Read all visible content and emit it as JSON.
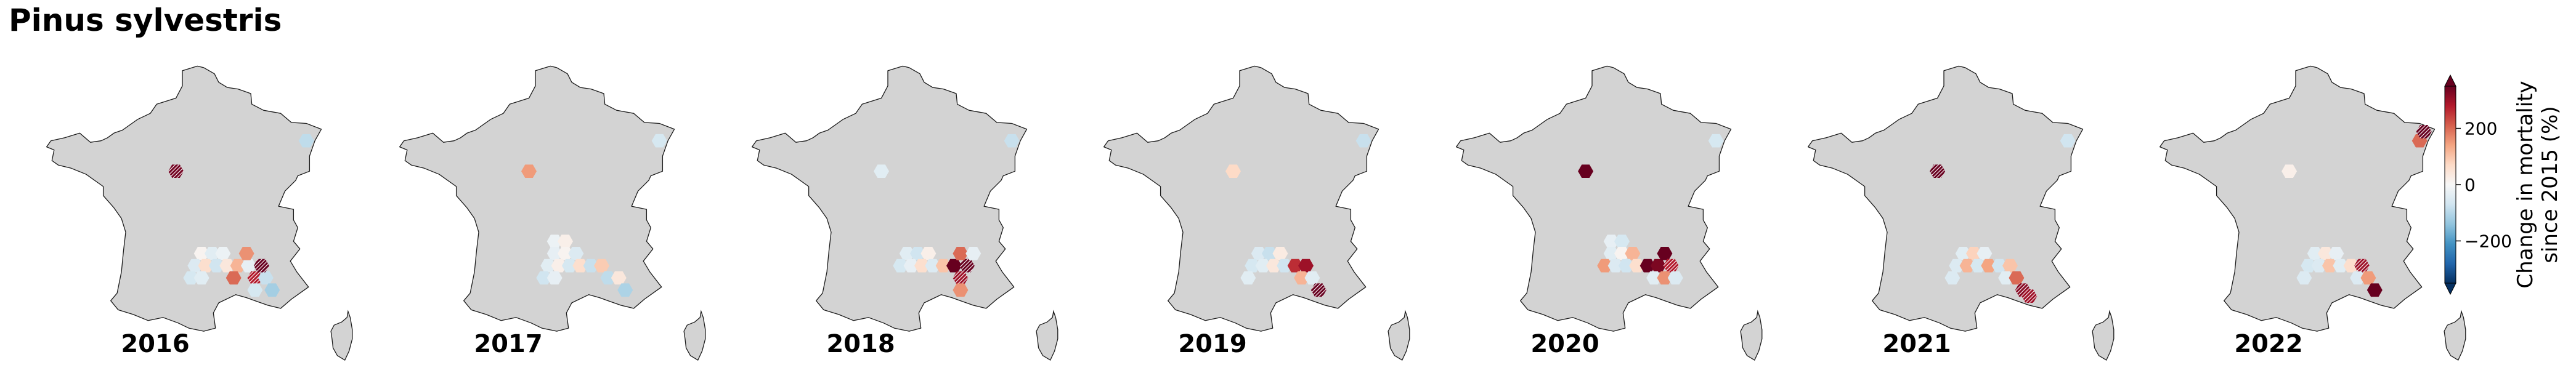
{
  "title": "Pinus sylvestris",
  "colors": {
    "land": "#d3d3d3",
    "coast": "#1a1a1a",
    "cmap": [
      "#053061",
      "#2166ac",
      "#4393c3",
      "#92c5de",
      "#d1e5f0",
      "#f7f7f7",
      "#fddbc7",
      "#f4a582",
      "#d6604d",
      "#b2182b",
      "#67001f"
    ],
    "hatch_edge": "#ffffff"
  },
  "chart_data": {
    "type": "heatmap",
    "description_type": "hexbin small multiples map",
    "colorbar": {
      "label_line1": "Change in mortality",
      "label_line2": "since 2015 (%)",
      "ticks": [
        {
          "value": 200,
          "label": "200"
        },
        {
          "value": 0,
          "label": "0"
        },
        {
          "value": -200,
          "label": "−200"
        }
      ],
      "range": [
        -350,
        350
      ],
      "extend": "both"
    },
    "panels": [
      {
        "year": "2016",
        "hexes": [
          {
            "lon": 1.3,
            "lat": 47.6,
            "value": 340,
            "hatched": true
          },
          {
            "lon": 7.4,
            "lat": 48.6,
            "value": -90,
            "hatched": false
          },
          {
            "lon": 2.5,
            "lat": 44.9,
            "value": 10,
            "hatched": false
          },
          {
            "lon": 3.0,
            "lat": 44.9,
            "value": -40,
            "hatched": false
          },
          {
            "lon": 3.5,
            "lat": 44.9,
            "value": -20,
            "hatched": false
          },
          {
            "lon": 2.2,
            "lat": 44.5,
            "value": -50,
            "hatched": false
          },
          {
            "lon": 2.7,
            "lat": 44.5,
            "value": 60,
            "hatched": false
          },
          {
            "lon": 3.2,
            "lat": 44.5,
            "value": -70,
            "hatched": false
          },
          {
            "lon": 3.7,
            "lat": 44.5,
            "value": 40,
            "hatched": false
          },
          {
            "lon": 4.2,
            "lat": 44.5,
            "value": 120,
            "hatched": false
          },
          {
            "lon": 4.7,
            "lat": 44.5,
            "value": -30,
            "hatched": false
          },
          {
            "lon": 2.0,
            "lat": 44.1,
            "value": -60,
            "hatched": false
          },
          {
            "lon": 2.5,
            "lat": 44.1,
            "value": -40,
            "hatched": false
          },
          {
            "lon": 4.0,
            "lat": 44.1,
            "value": 200,
            "hatched": false
          },
          {
            "lon": 5.0,
            "lat": 44.1,
            "value": 280,
            "hatched": true
          },
          {
            "lon": 5.5,
            "lat": 44.1,
            "value": -80,
            "hatched": false
          },
          {
            "lon": 5.3,
            "lat": 44.5,
            "value": 350,
            "hatched": true
          },
          {
            "lon": 5.0,
            "lat": 43.7,
            "value": -60,
            "hatched": false
          },
          {
            "lon": 5.8,
            "lat": 43.7,
            "value": -120,
            "hatched": false
          },
          {
            "lon": 4.6,
            "lat": 44.9,
            "value": 160,
            "hatched": false
          }
        ]
      },
      {
        "year": "2017",
        "hexes": [
          {
            "lon": 1.3,
            "lat": 47.6,
            "value": 150,
            "hatched": false
          },
          {
            "lon": 7.4,
            "lat": 48.6,
            "value": -60,
            "hatched": false
          },
          {
            "lon": 2.5,
            "lat": 45.3,
            "value": -20,
            "hatched": false
          },
          {
            "lon": 3.0,
            "lat": 45.3,
            "value": 20,
            "hatched": false
          },
          {
            "lon": 2.5,
            "lat": 44.9,
            "value": -30,
            "hatched": false
          },
          {
            "lon": 3.0,
            "lat": 44.9,
            "value": 10,
            "hatched": false
          },
          {
            "lon": 3.5,
            "lat": 44.9,
            "value": -50,
            "hatched": false
          },
          {
            "lon": 2.2,
            "lat": 44.5,
            "value": -40,
            "hatched": false
          },
          {
            "lon": 2.7,
            "lat": 44.5,
            "value": 20,
            "hatched": false
          },
          {
            "lon": 3.2,
            "lat": 44.5,
            "value": -60,
            "hatched": false
          },
          {
            "lon": 3.7,
            "lat": 44.5,
            "value": 60,
            "hatched": false
          },
          {
            "lon": 4.2,
            "lat": 44.5,
            "value": -80,
            "hatched": false
          },
          {
            "lon": 4.7,
            "lat": 44.5,
            "value": 90,
            "hatched": false
          },
          {
            "lon": 2.0,
            "lat": 44.1,
            "value": -70,
            "hatched": false
          },
          {
            "lon": 2.5,
            "lat": 44.1,
            "value": -30,
            "hatched": false
          },
          {
            "lon": 5.0,
            "lat": 44.1,
            "value": -90,
            "hatched": false
          },
          {
            "lon": 5.5,
            "lat": 44.1,
            "value": 40,
            "hatched": false
          },
          {
            "lon": 5.8,
            "lat": 43.7,
            "value": -110,
            "hatched": false
          }
        ]
      },
      {
        "year": "2018",
        "hexes": [
          {
            "lon": 1.3,
            "lat": 47.6,
            "value": -40,
            "hatched": false
          },
          {
            "lon": 7.4,
            "lat": 48.6,
            "value": -80,
            "hatched": false
          },
          {
            "lon": 2.5,
            "lat": 44.9,
            "value": -40,
            "hatched": false
          },
          {
            "lon": 3.0,
            "lat": 44.9,
            "value": -70,
            "hatched": false
          },
          {
            "lon": 3.5,
            "lat": 44.9,
            "value": 20,
            "hatched": false
          },
          {
            "lon": 2.2,
            "lat": 44.5,
            "value": -60,
            "hatched": false
          },
          {
            "lon": 2.7,
            "lat": 44.5,
            "value": -30,
            "hatched": false
          },
          {
            "lon": 3.2,
            "lat": 44.5,
            "value": 60,
            "hatched": false
          },
          {
            "lon": 3.7,
            "lat": 44.5,
            "value": -50,
            "hatched": false
          },
          {
            "lon": 4.2,
            "lat": 44.5,
            "value": 100,
            "hatched": false
          },
          {
            "lon": 4.7,
            "lat": 44.5,
            "value": 350,
            "hatched": false
          },
          {
            "lon": 5.3,
            "lat": 44.5,
            "value": 350,
            "hatched": true
          },
          {
            "lon": 5.0,
            "lat": 44.9,
            "value": 200,
            "hatched": false
          },
          {
            "lon": 5.0,
            "lat": 44.1,
            "value": 300,
            "hatched": true
          },
          {
            "lon": 5.0,
            "lat": 43.7,
            "value": 160,
            "hatched": false
          },
          {
            "lon": 5.6,
            "lat": 44.9,
            "value": -30,
            "hatched": false
          }
        ]
      },
      {
        "year": "2019",
        "hexes": [
          {
            "lon": 1.3,
            "lat": 47.6,
            "value": 70,
            "hatched": false
          },
          {
            "lon": 7.4,
            "lat": 48.6,
            "value": -80,
            "hatched": false
          },
          {
            "lon": 2.5,
            "lat": 44.9,
            "value": -50,
            "hatched": false
          },
          {
            "lon": 3.0,
            "lat": 44.9,
            "value": -80,
            "hatched": false
          },
          {
            "lon": 3.5,
            "lat": 44.9,
            "value": 30,
            "hatched": false
          },
          {
            "lon": 2.2,
            "lat": 44.5,
            "value": -60,
            "hatched": false
          },
          {
            "lon": 2.7,
            "lat": 44.5,
            "value": -40,
            "hatched": false
          },
          {
            "lon": 3.2,
            "lat": 44.5,
            "value": 40,
            "hatched": false
          },
          {
            "lon": 3.7,
            "lat": 44.5,
            "value": -70,
            "hatched": false
          },
          {
            "lon": 4.2,
            "lat": 44.5,
            "value": 260,
            "hatched": false
          },
          {
            "lon": 4.7,
            "lat": 44.5,
            "value": 300,
            "hatched": false
          },
          {
            "lon": 4.5,
            "lat": 44.1,
            "value": 120,
            "hatched": false
          },
          {
            "lon": 5.0,
            "lat": 44.1,
            "value": -40,
            "hatched": false
          },
          {
            "lon": 5.3,
            "lat": 43.7,
            "value": 350,
            "hatched": true
          },
          {
            "lon": 2.0,
            "lat": 44.1,
            "value": -40,
            "hatched": false
          }
        ]
      },
      {
        "year": "2020",
        "hexes": [
          {
            "lon": 1.3,
            "lat": 47.6,
            "value": 350,
            "hatched": false
          },
          {
            "lon": 7.4,
            "lat": 48.6,
            "value": -60,
            "hatched": false
          },
          {
            "lon": 2.5,
            "lat": 45.3,
            "value": -30,
            "hatched": false
          },
          {
            "lon": 3.0,
            "lat": 45.3,
            "value": -60,
            "hatched": false
          },
          {
            "lon": 2.5,
            "lat": 44.9,
            "value": -40,
            "hatched": false
          },
          {
            "lon": 3.0,
            "lat": 44.9,
            "value": 10,
            "hatched": false
          },
          {
            "lon": 3.5,
            "lat": 44.9,
            "value": 120,
            "hatched": false
          },
          {
            "lon": 2.2,
            "lat": 44.5,
            "value": 150,
            "hatched": false
          },
          {
            "lon": 2.7,
            "lat": 44.5,
            "value": -50,
            "hatched": false
          },
          {
            "lon": 3.2,
            "lat": 44.5,
            "value": -70,
            "hatched": false
          },
          {
            "lon": 3.7,
            "lat": 44.5,
            "value": 60,
            "hatched": false
          },
          {
            "lon": 4.2,
            "lat": 44.5,
            "value": 350,
            "hatched": false
          },
          {
            "lon": 4.7,
            "lat": 44.5,
            "value": 330,
            "hatched": false
          },
          {
            "lon": 5.0,
            "lat": 44.9,
            "value": 350,
            "hatched": false
          },
          {
            "lon": 5.3,
            "lat": 44.5,
            "value": 280,
            "hatched": true
          },
          {
            "lon": 4.5,
            "lat": 44.1,
            "value": -40,
            "hatched": false
          },
          {
            "lon": 5.0,
            "lat": 44.1,
            "value": 160,
            "hatched": false
          },
          {
            "lon": 5.5,
            "lat": 44.1,
            "value": -50,
            "hatched": false
          }
        ]
      },
      {
        "year": "2021",
        "hexes": [
          {
            "lon": 1.3,
            "lat": 47.6,
            "value": 350,
            "hatched": true
          },
          {
            "lon": 7.4,
            "lat": 48.6,
            "value": -70,
            "hatched": false
          },
          {
            "lon": 2.5,
            "lat": 44.9,
            "value": -40,
            "hatched": false
          },
          {
            "lon": 3.0,
            "lat": 44.9,
            "value": 80,
            "hatched": false
          },
          {
            "lon": 3.5,
            "lat": 44.9,
            "value": -30,
            "hatched": false
          },
          {
            "lon": 2.2,
            "lat": 44.5,
            "value": -50,
            "hatched": false
          },
          {
            "lon": 2.7,
            "lat": 44.5,
            "value": 120,
            "hatched": false
          },
          {
            "lon": 3.2,
            "lat": 44.5,
            "value": -60,
            "hatched": false
          },
          {
            "lon": 3.7,
            "lat": 44.5,
            "value": 140,
            "hatched": false
          },
          {
            "lon": 4.2,
            "lat": 44.5,
            "value": -70,
            "hatched": false
          },
          {
            "lon": 4.7,
            "lat": 44.5,
            "value": 100,
            "hatched": false
          },
          {
            "lon": 4.5,
            "lat": 44.1,
            "value": -40,
            "hatched": false
          },
          {
            "lon": 5.0,
            "lat": 44.1,
            "value": 200,
            "hatched": false
          },
          {
            "lon": 5.3,
            "lat": 43.7,
            "value": 320,
            "hatched": true
          },
          {
            "lon": 5.6,
            "lat": 43.5,
            "value": 300,
            "hatched": true
          },
          {
            "lon": 2.0,
            "lat": 44.1,
            "value": -50,
            "hatched": false
          }
        ]
      },
      {
        "year": "2022",
        "hexes": [
          {
            "lon": 1.3,
            "lat": 47.6,
            "value": 20,
            "hatched": false
          },
          {
            "lon": 7.4,
            "lat": 48.6,
            "value": 200,
            "hatched": false
          },
          {
            "lon": 7.6,
            "lat": 48.9,
            "value": 350,
            "hatched": true
          },
          {
            "lon": 2.5,
            "lat": 44.9,
            "value": -40,
            "hatched": false
          },
          {
            "lon": 3.0,
            "lat": 44.9,
            "value": 40,
            "hatched": false
          },
          {
            "lon": 3.5,
            "lat": 44.9,
            "value": -30,
            "hatched": false
          },
          {
            "lon": 2.2,
            "lat": 44.5,
            "value": -60,
            "hatched": false
          },
          {
            "lon": 2.7,
            "lat": 44.5,
            "value": -50,
            "hatched": false
          },
          {
            "lon": 3.2,
            "lat": 44.5,
            "value": 100,
            "hatched": false
          },
          {
            "lon": 3.7,
            "lat": 44.5,
            "value": -40,
            "hatched": false
          },
          {
            "lon": 4.2,
            "lat": 44.5,
            "value": 60,
            "hatched": false
          },
          {
            "lon": 4.7,
            "lat": 44.5,
            "value": 300,
            "hatched": true
          },
          {
            "lon": 4.5,
            "lat": 44.1,
            "value": -50,
            "hatched": false
          },
          {
            "lon": 5.0,
            "lat": 44.1,
            "value": 150,
            "hatched": false
          },
          {
            "lon": 5.3,
            "lat": 43.7,
            "value": 350,
            "hatched": false
          },
          {
            "lon": 2.0,
            "lat": 44.1,
            "value": -50,
            "hatched": false
          }
        ]
      }
    ]
  }
}
